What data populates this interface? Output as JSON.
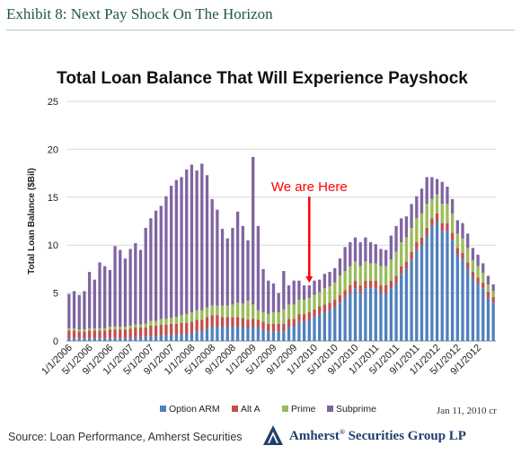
{
  "header": {
    "exhibit": "Exhibit 8:  Next Pay Shock On The Horizon"
  },
  "footer": {
    "source": "Source:  Loan Performance, Amherst Securities",
    "date": "Jan 11, 2010 cr",
    "company_name": "Amherst",
    "company_mark": "®",
    "company_rest": " Securities Group LP"
  },
  "colors": {
    "option_arm": "#4f81bd",
    "alt_a": "#c0504d",
    "prime": "#9bbb59",
    "subprime": "#8064a2",
    "header_green": "#1f5a3a",
    "annotation_red": "#ff0000"
  },
  "chart_data": {
    "type": "bar",
    "stacked": true,
    "title": "Total Loan Balance That Will Experience Payshock",
    "ylabel": "Total Loan Balance  ($Bil)",
    "xlabel": "",
    "ylim": [
      0,
      25
    ],
    "yticks": [
      0,
      5,
      10,
      15,
      20,
      25
    ],
    "grid": true,
    "legend": "bottom",
    "annotation": {
      "text": "We are Here",
      "month": "12/1/2009"
    },
    "x_tick_labels": [
      "1/1/2006",
      "5/1/2006",
      "9/1/2006",
      "1/1/2007",
      "5/1/2007",
      "9/1/2007",
      "1/1/2008",
      "5/1/2008",
      "9/1/2008",
      "1/1/2009",
      "5/1/2009",
      "9/1/2009",
      "1/1/2010",
      "5/1/2010",
      "9/1/2010",
      "1/1/2011",
      "5/1/2011",
      "9/1/2011",
      "1/1/2012",
      "5/1/2012",
      "9/1/2012"
    ],
    "categories": [
      "1/1/2006",
      "2/1/2006",
      "3/1/2006",
      "4/1/2006",
      "5/1/2006",
      "6/1/2006",
      "7/1/2006",
      "8/1/2006",
      "9/1/2006",
      "10/1/2006",
      "11/1/2006",
      "12/1/2006",
      "1/1/2007",
      "2/1/2007",
      "3/1/2007",
      "4/1/2007",
      "5/1/2007",
      "6/1/2007",
      "7/1/2007",
      "8/1/2007",
      "9/1/2007",
      "10/1/2007",
      "11/1/2007",
      "12/1/2007",
      "1/1/2008",
      "2/1/2008",
      "3/1/2008",
      "4/1/2008",
      "5/1/2008",
      "6/1/2008",
      "7/1/2008",
      "8/1/2008",
      "9/1/2008",
      "10/1/2008",
      "11/1/2008",
      "12/1/2008",
      "1/1/2009",
      "2/1/2009",
      "3/1/2009",
      "4/1/2009",
      "5/1/2009",
      "6/1/2009",
      "7/1/2009",
      "8/1/2009",
      "9/1/2009",
      "10/1/2009",
      "11/1/2009",
      "12/1/2009",
      "1/1/2010",
      "2/1/2010",
      "3/1/2010",
      "4/1/2010",
      "5/1/2010",
      "6/1/2010",
      "7/1/2010",
      "8/1/2010",
      "9/1/2010",
      "10/1/2010",
      "11/1/2010",
      "12/1/2010",
      "1/1/2011",
      "2/1/2011",
      "3/1/2011",
      "4/1/2011",
      "5/1/2011",
      "6/1/2011",
      "7/1/2011",
      "8/1/2011",
      "9/1/2011",
      "10/1/2011",
      "11/1/2011",
      "12/1/2011",
      "1/1/2012",
      "2/1/2012",
      "3/1/2012",
      "4/1/2012",
      "5/1/2012",
      "6/1/2012",
      "7/1/2012",
      "8/1/2012",
      "9/1/2012",
      "10/1/2012",
      "11/1/2012",
      "12/1/2012"
    ],
    "series": [
      {
        "name": "Option ARM",
        "values": [
          0.3,
          0.3,
          0.3,
          0.3,
          0.3,
          0.3,
          0.3,
          0.3,
          0.3,
          0.3,
          0.3,
          0.3,
          0.3,
          0.4,
          0.4,
          0.4,
          0.5,
          0.5,
          0.6,
          0.6,
          0.6,
          0.6,
          0.7,
          0.7,
          0.8,
          1.0,
          1.0,
          1.3,
          1.5,
          1.5,
          1.5,
          1.5,
          1.5,
          1.5,
          1.5,
          1.3,
          1.5,
          1.4,
          1.2,
          1.0,
          1.0,
          1.0,
          1.0,
          1.5,
          1.5,
          2.0,
          2.0,
          2.2,
          2.5,
          2.8,
          3.0,
          3.2,
          3.5,
          4.0,
          4.5,
          5.0,
          5.5,
          5.0,
          5.5,
          5.5,
          5.5,
          5.0,
          5.0,
          5.5,
          6.0,
          7.0,
          7.5,
          8.5,
          9.5,
          10.0,
          11.0,
          12.0,
          12.5,
          11.5,
          11.5,
          10.5,
          9.0,
          8.5,
          7.5,
          6.5,
          6.0,
          5.5,
          4.5,
          4.0
        ]
      },
      {
        "name": "Alt A",
        "values": [
          0.8,
          0.8,
          0.7,
          0.7,
          0.8,
          0.8,
          0.8,
          0.8,
          0.9,
          0.9,
          0.9,
          0.9,
          1.0,
          1.0,
          1.0,
          1.0,
          1.1,
          1.1,
          1.1,
          1.1,
          1.2,
          1.2,
          1.2,
          1.2,
          1.2,
          1.2,
          1.2,
          1.2,
          1.2,
          1.2,
          1.0,
          1.0,
          1.0,
          1.0,
          0.9,
          0.9,
          0.8,
          0.8,
          0.8,
          0.8,
          0.8,
          0.8,
          0.8,
          0.8,
          0.8,
          0.8,
          0.8,
          0.8,
          0.8,
          0.8,
          0.8,
          0.8,
          0.8,
          0.8,
          0.8,
          0.8,
          0.8,
          0.8,
          0.8,
          0.8,
          0.8,
          0.8,
          0.8,
          0.8,
          0.8,
          0.8,
          0.8,
          0.8,
          0.8,
          0.8,
          0.8,
          0.8,
          0.8,
          0.8,
          0.8,
          0.8,
          0.7,
          0.7,
          0.7,
          0.7,
          0.6,
          0.6,
          0.6,
          0.6
        ]
      },
      {
        "name": "Prime",
        "values": [
          0.2,
          0.2,
          0.2,
          0.2,
          0.2,
          0.2,
          0.2,
          0.2,
          0.3,
          0.3,
          0.3,
          0.3,
          0.3,
          0.3,
          0.3,
          0.4,
          0.5,
          0.5,
          0.6,
          0.6,
          0.6,
          0.7,
          0.8,
          0.9,
          1.0,
          1.0,
          1.0,
          1.0,
          1.0,
          1.0,
          1.2,
          1.2,
          1.3,
          1.5,
          1.5,
          2.0,
          1.5,
          1.0,
          1.0,
          1.0,
          1.2,
          1.2,
          1.5,
          1.5,
          1.5,
          1.5,
          1.5,
          1.5,
          1.5,
          1.5,
          1.7,
          1.7,
          1.8,
          2.0,
          2.0,
          2.0,
          2.0,
          2.0,
          2.0,
          1.8,
          1.8,
          2.0,
          2.0,
          2.2,
          2.5,
          2.5,
          2.5,
          2.5,
          2.5,
          2.5,
          2.5,
          2.0,
          2.0,
          2.0,
          2.0,
          2.0,
          1.5,
          1.5,
          1.5,
          1.2,
          1.2,
          1.0,
          0.8,
          0.6
        ]
      },
      {
        "name": "Subprime",
        "values": [
          3.6,
          3.9,
          3.6,
          4.0,
          5.9,
          5.1,
          6.9,
          6.5,
          5.9,
          8.4,
          8.0,
          7.1,
          8.0,
          8.5,
          7.8,
          10.0,
          10.7,
          11.5,
          11.8,
          12.8,
          13.8,
          14.3,
          14.4,
          15.1,
          15.4,
          14.6,
          15.3,
          13.8,
          11.1,
          10.0,
          8.0,
          7.0,
          8.0,
          9.5,
          8.1,
          6.3,
          15.4,
          8.8,
          4.5,
          3.5,
          3.0,
          2.0,
          4.0,
          2.0,
          2.5,
          2.0,
          1.5,
          1.3,
          1.5,
          1.3,
          1.5,
          1.5,
          1.5,
          1.8,
          2.5,
          2.5,
          2.5,
          2.5,
          2.5,
          2.2,
          2.0,
          1.8,
          1.7,
          2.5,
          2.7,
          2.5,
          2.2,
          2.5,
          2.3,
          2.6,
          2.8,
          2.3,
          1.6,
          2.3,
          1.8,
          1.5,
          1.4,
          1.6,
          1.5,
          1.3,
          1.2,
          1.0,
          0.9,
          0.7
        ]
      }
    ]
  }
}
